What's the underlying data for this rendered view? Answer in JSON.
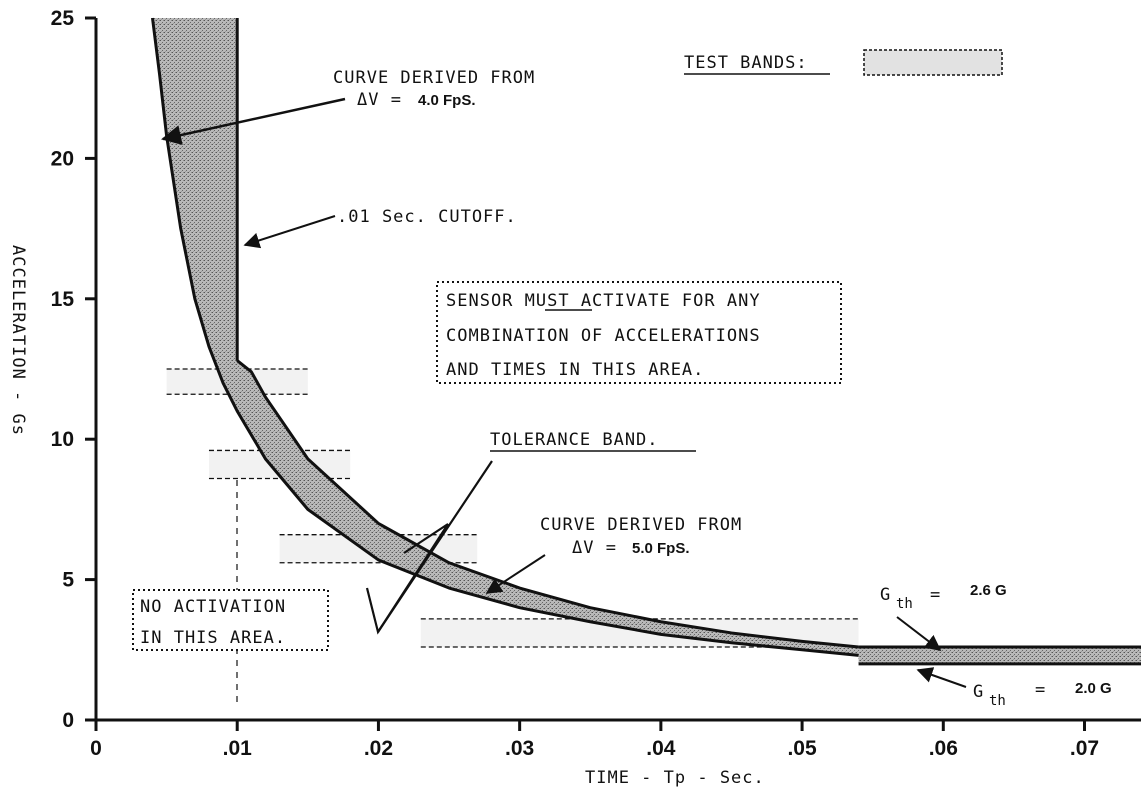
{
  "chart_data": {
    "type": "area",
    "xlabel": "TIME - Tp - Sec.",
    "ylabel": "ACCELERATION - Gs",
    "xlim": [
      0,
      0.074
    ],
    "ylim": [
      0,
      25
    ],
    "x_ticks": [
      0,
      0.01,
      0.02,
      0.03,
      0.04,
      0.05,
      0.06,
      0.07
    ],
    "x_tick_labels": [
      "0",
      ".01",
      ".02",
      ".03",
      ".04",
      ".05",
      ".06",
      ".07"
    ],
    "y_ticks": [
      0,
      5,
      10,
      15,
      20,
      25
    ],
    "y_tick_labels": [
      "0",
      "5",
      "10",
      "15",
      "20",
      "25"
    ],
    "grid": false,
    "series": [
      {
        "name": "CURVE DERIVED FROM ΔV = 4.0 FpS.",
        "x": [
          0.004,
          0.0045,
          0.005,
          0.006,
          0.007,
          0.008,
          0.009,
          0.01,
          0.012,
          0.015,
          0.02,
          0.025,
          0.03,
          0.035,
          0.04,
          0.045,
          0.05,
          0.054
        ],
        "y": [
          25.0,
          23.0,
          20.8,
          17.5,
          15.0,
          13.3,
          12.0,
          11.0,
          9.3,
          7.5,
          5.7,
          4.7,
          4.0,
          3.5,
          3.05,
          2.75,
          2.5,
          2.3
        ]
      },
      {
        "name": "CURVE DERIVED FROM ΔV = 5.0 FpS.",
        "x": [
          0.01,
          0.011,
          0.012,
          0.015,
          0.02,
          0.025,
          0.03,
          0.035,
          0.04,
          0.045,
          0.05,
          0.054
        ],
        "y": [
          12.8,
          12.4,
          11.5,
          9.3,
          7.0,
          5.6,
          4.7,
          4.0,
          3.5,
          3.1,
          2.8,
          2.6
        ]
      },
      {
        "name": "Gth = 2.6 G",
        "x": [
          0.054,
          0.074
        ],
        "y": [
          2.6,
          2.6
        ]
      },
      {
        "name": "Gth = 2.0 G",
        "x": [
          0.054,
          0.074
        ],
        "y": [
          2.0,
          2.0
        ]
      },
      {
        "name": ".01 Sec. CUTOFF.",
        "x": [
          0.01,
          0.01
        ],
        "y": [
          12.8,
          25
        ]
      }
    ],
    "test_bands": [
      {
        "x": [
          0.005,
          0.015
        ],
        "y": [
          11.6,
          12.5
        ]
      },
      {
        "x": [
          0.008,
          0.018
        ],
        "y": [
          8.6,
          9.6
        ]
      },
      {
        "x": [
          0.013,
          0.027
        ],
        "y": [
          5.6,
          6.6
        ]
      },
      {
        "x": [
          0.023,
          0.054
        ],
        "y": [
          2.6,
          3.6
        ]
      }
    ],
    "annotations": {
      "curve4_line1": "CURVE DERIVED FROM",
      "curve4_dv": "ΔV =",
      "curve4_value": "4.0 FpS.",
      "cutoff": ".01 Sec. CUTOFF.",
      "test_bands": "TEST BANDS:",
      "sensor": [
        "SENSOR MUST ACTIVATE FOR ANY",
        "COMBINATION OF ACCELERATIONS",
        "AND TIMES IN THIS AREA."
      ],
      "tolerance": "TOLERANCE BAND.",
      "curve5_line1": "CURVE DERIVED FROM",
      "curve5_dv": "ΔV =",
      "curve5_value": "5.0 FpS.",
      "no_activation": [
        "NO ACTIVATION",
        "IN THIS AREA."
      ],
      "gth_upper_label": "G",
      "gth_upper_sub": "th",
      "gth_upper_eq": "=",
      "gth_upper_value": "2.6 G",
      "gth_lower_label": "G",
      "gth_lower_sub": "th",
      "gth_lower_eq": "=",
      "gth_lower_value": "2.0 G"
    }
  }
}
